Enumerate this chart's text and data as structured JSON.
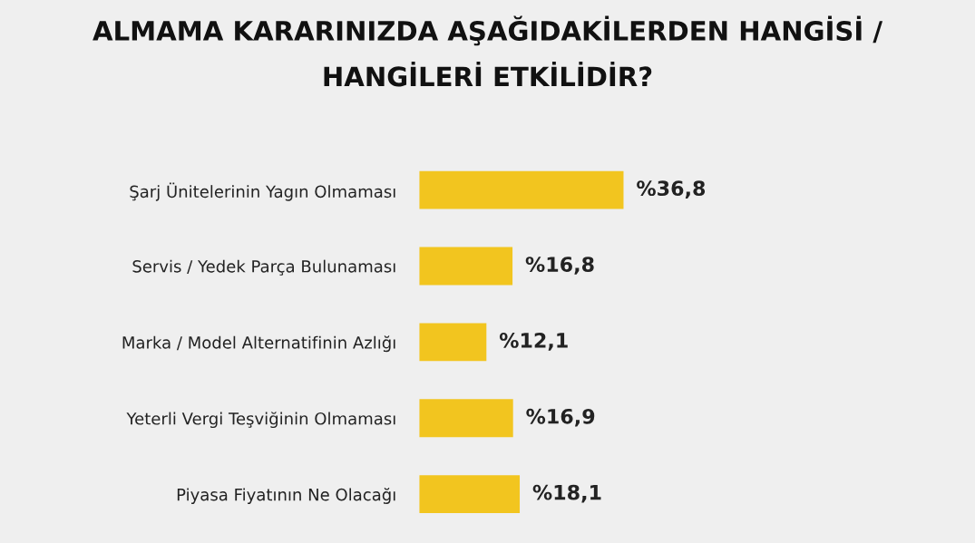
{
  "chart_data": {
    "type": "bar",
    "orientation": "horizontal",
    "title": "ALMAMA KARARINIZDA AŞAĞIDAKİLERDEN HANGİSİ /\nHANGİLERİ ETKİLİDİR?",
    "categories": [
      "Şarj Ünitelerinin Yagın Olmaması",
      "Servis / Yedek Parça Bulunaması",
      "Marka / Model Alternatifinin Azlığı",
      "Yeterli Vergi Teşviğinin Olmaması",
      "Piyasa Fiyatının Ne Olacağı"
    ],
    "values": [
      36.8,
      16.8,
      12.1,
      16.9,
      18.1
    ],
    "value_labels": [
      "%36,8",
      "%16,8",
      "%12,1",
      "%16,9",
      "%18,1"
    ],
    "color": "#f2c51f",
    "tick_labels": "y",
    "grid": false,
    "legend": false
  }
}
